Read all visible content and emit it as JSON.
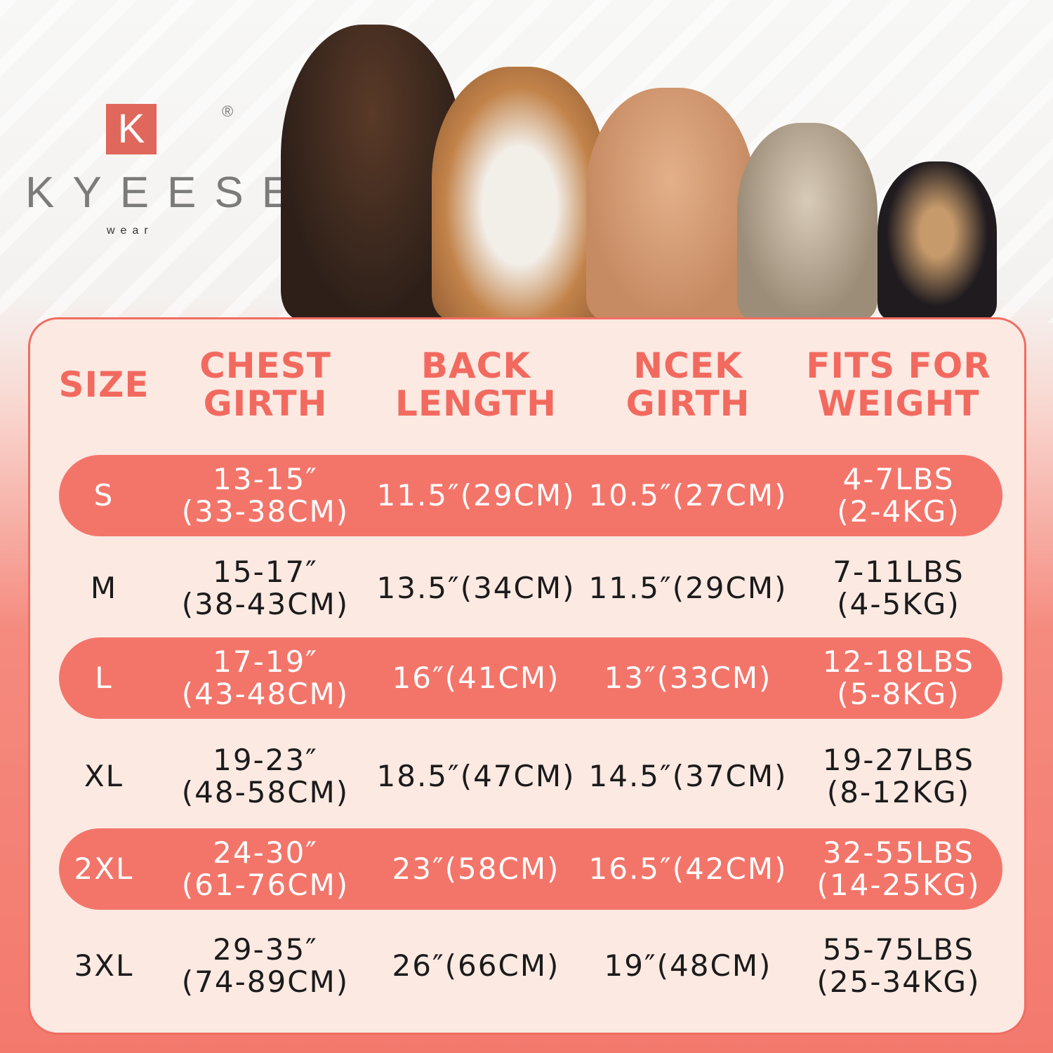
{
  "brand": {
    "logo_letter": "K",
    "name": "KYEESE",
    "sub": "wear",
    "registered": "®"
  },
  "colors": {
    "accent": "#f3756a",
    "header_text": "#f26a5f",
    "panel_bg": "#fbe9e2",
    "body_text": "#1b1b1b"
  },
  "table": {
    "headers": [
      [
        "SIZE",
        ""
      ],
      [
        "CHEST",
        "GIRTH"
      ],
      [
        "BACK",
        "LENGTH"
      ],
      [
        "NCEK",
        "GIRTH"
      ],
      [
        "FITS FOR",
        "WEIGHT"
      ]
    ],
    "rows": [
      {
        "size": "S",
        "chest": [
          "13-15″",
          "(33-38CM)"
        ],
        "back": "11.5″(29CM)",
        "neck": "10.5″(27CM)",
        "weight": [
          "4-7LBS",
          "(2-4KG)"
        ],
        "highlighted": true
      },
      {
        "size": "M",
        "chest": [
          "15-17″",
          "(38-43CM)"
        ],
        "back": "13.5″(34CM)",
        "neck": "11.5″(29CM)",
        "weight": [
          "7-11LBS",
          "(4-5KG)"
        ],
        "highlighted": false
      },
      {
        "size": "L",
        "chest": [
          "17-19″",
          "(43-48CM)"
        ],
        "back": "16″(41CM)",
        "neck": "13″(33CM)",
        "weight": [
          "12-18LBS",
          "(5-8KG)"
        ],
        "highlighted": true
      },
      {
        "size": "XL",
        "chest": [
          "19-23″",
          "(48-58CM)"
        ],
        "back": "18.5″(47CM)",
        "neck": "14.5″(37CM)",
        "weight": [
          "19-27LBS",
          "(8-12KG)"
        ],
        "highlighted": false
      },
      {
        "size": "2XL",
        "chest": [
          "24-30″",
          "(61-76CM)"
        ],
        "back": "23″(58CM)",
        "neck": "16.5″(42CM)",
        "weight": [
          "32-55LBS",
          "(14-25KG)"
        ],
        "highlighted": true
      },
      {
        "size": "3XL",
        "chest": [
          "29-35″",
          "(74-89CM)"
        ],
        "back": "26″(66CM)",
        "neck": "19″(48CM)",
        "weight": [
          "55-75LBS",
          "(25-34KG)"
        ],
        "highlighted": false
      }
    ]
  }
}
